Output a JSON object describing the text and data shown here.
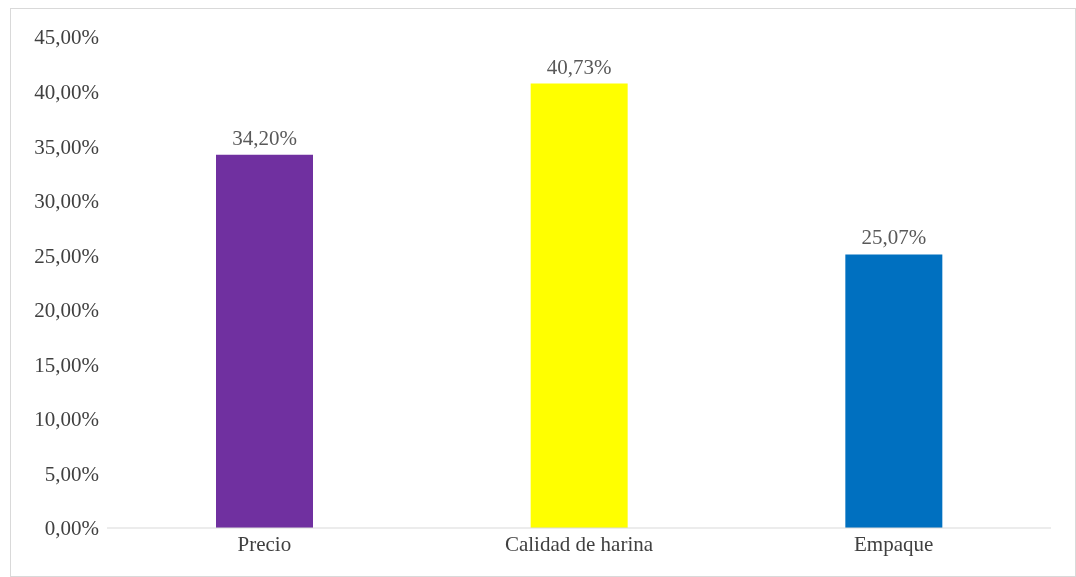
{
  "chart_data": {
    "type": "bar",
    "categories": [
      "Precio",
      "Calidad de harina",
      "Empaque"
    ],
    "values": [
      34.2,
      40.73,
      25.07
    ],
    "colors": [
      "#7030a0",
      "#ffff00",
      "#0070c0"
    ],
    "value_labels": [
      "34,20%",
      "40,73%",
      "25,07%"
    ],
    "ylim": [
      0,
      45
    ],
    "yticks": [
      {
        "value": 0,
        "label": "0,00%"
      },
      {
        "value": 5,
        "label": "5,00%"
      },
      {
        "value": 10,
        "label": "10,00%"
      },
      {
        "value": 15,
        "label": "15,00%"
      },
      {
        "value": 20,
        "label": "20,00%"
      },
      {
        "value": 25,
        "label": "25,00%"
      },
      {
        "value": 30,
        "label": "30,00%"
      },
      {
        "value": 35,
        "label": "35,00%"
      },
      {
        "value": 40,
        "label": "40,00%"
      },
      {
        "value": 45,
        "label": "45,00%"
      }
    ],
    "grid": false,
    "legend": false
  }
}
